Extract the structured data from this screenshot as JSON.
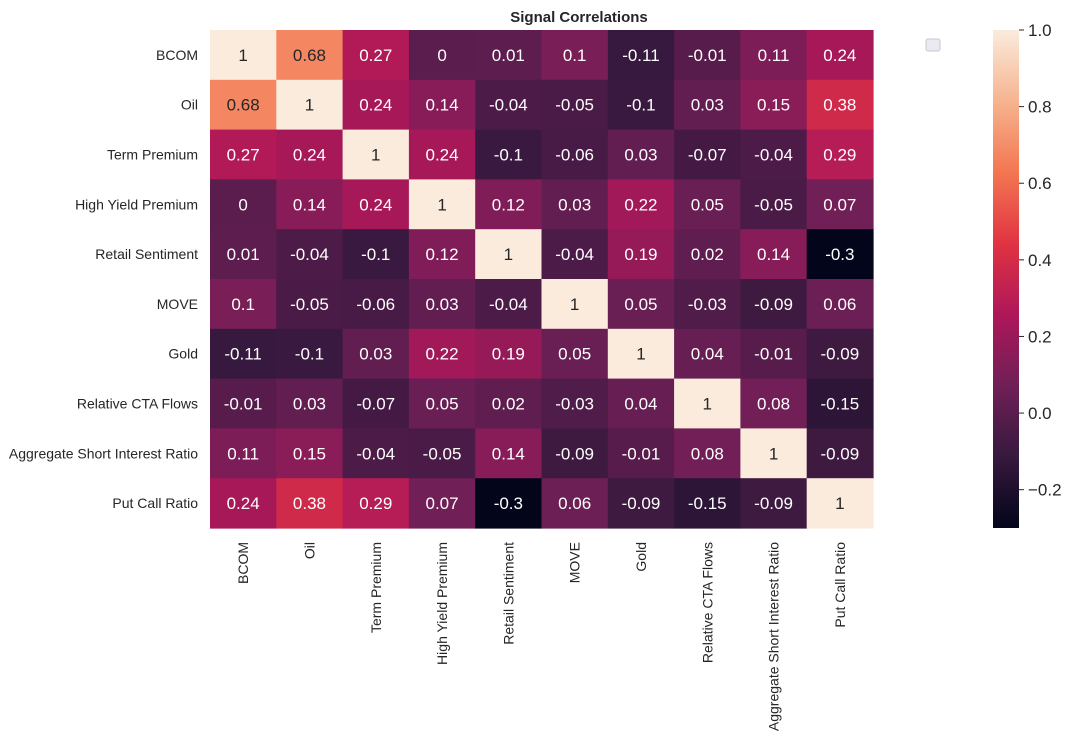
{
  "chart_data": {
    "type": "heatmap",
    "title": "Signal Correlations",
    "rows": [
      "BCOM",
      "Oil",
      "Term Premium",
      "High Yield Premium",
      "Retail Sentiment",
      "MOVE",
      "Gold",
      "Relative CTA Flows",
      "Aggregate Short Interest Ratio",
      "Put Call Ratio"
    ],
    "columns": [
      "BCOM",
      "Oil",
      "Term Premium",
      "High Yield Premium",
      "Retail Sentiment",
      "MOVE",
      "Gold",
      "Relative CTA Flows",
      "Aggregate Short Interest Ratio",
      "Put Call Ratio"
    ],
    "values": [
      [
        1,
        0.68,
        0.27,
        0,
        0.01,
        0.1,
        -0.11,
        -0.01,
        0.11,
        0.24
      ],
      [
        0.68,
        1,
        0.24,
        0.14,
        -0.04,
        -0.05,
        -0.1,
        0.03,
        0.15,
        0.38
      ],
      [
        0.27,
        0.24,
        1,
        0.24,
        -0.1,
        -0.06,
        0.03,
        -0.07,
        -0.04,
        0.29
      ],
      [
        0,
        0.14,
        0.24,
        1,
        0.12,
        0.03,
        0.22,
        0.05,
        -0.05,
        0.07
      ],
      [
        0.01,
        -0.04,
        -0.1,
        0.12,
        1,
        -0.04,
        0.19,
        0.02,
        0.14,
        -0.3
      ],
      [
        0.1,
        -0.05,
        -0.06,
        0.03,
        -0.04,
        1,
        0.05,
        -0.03,
        -0.09,
        0.06
      ],
      [
        -0.11,
        -0.1,
        0.03,
        0.22,
        0.19,
        0.05,
        1,
        0.04,
        -0.01,
        -0.09
      ],
      [
        -0.01,
        0.03,
        -0.07,
        0.05,
        0.02,
        -0.03,
        0.04,
        1,
        0.08,
        -0.15
      ],
      [
        0.11,
        0.15,
        -0.04,
        -0.05,
        0.14,
        -0.09,
        -0.01,
        0.08,
        1,
        -0.09
      ],
      [
        0.24,
        0.38,
        0.29,
        0.07,
        -0.3,
        0.06,
        -0.09,
        -0.15,
        -0.09,
        1
      ]
    ],
    "colorbar": {
      "min": -0.3,
      "max": 1.0,
      "ticks": [
        1.0,
        0.8,
        0.6,
        0.4,
        0.2,
        0.0,
        -0.2
      ],
      "tick_labels": [
        "1.0",
        "0.8",
        "0.6",
        "0.4",
        "0.2",
        "0.0",
        "−0.2"
      ]
    },
    "colormap": "rocket",
    "colors": [
      "#03051a",
      "#36193e",
      "#701f57",
      "#ad1759",
      "#e13342",
      "#f37651",
      "#f6b48f",
      "#faebdd"
    ],
    "legend": "top-right, empty",
    "grid": false
  }
}
